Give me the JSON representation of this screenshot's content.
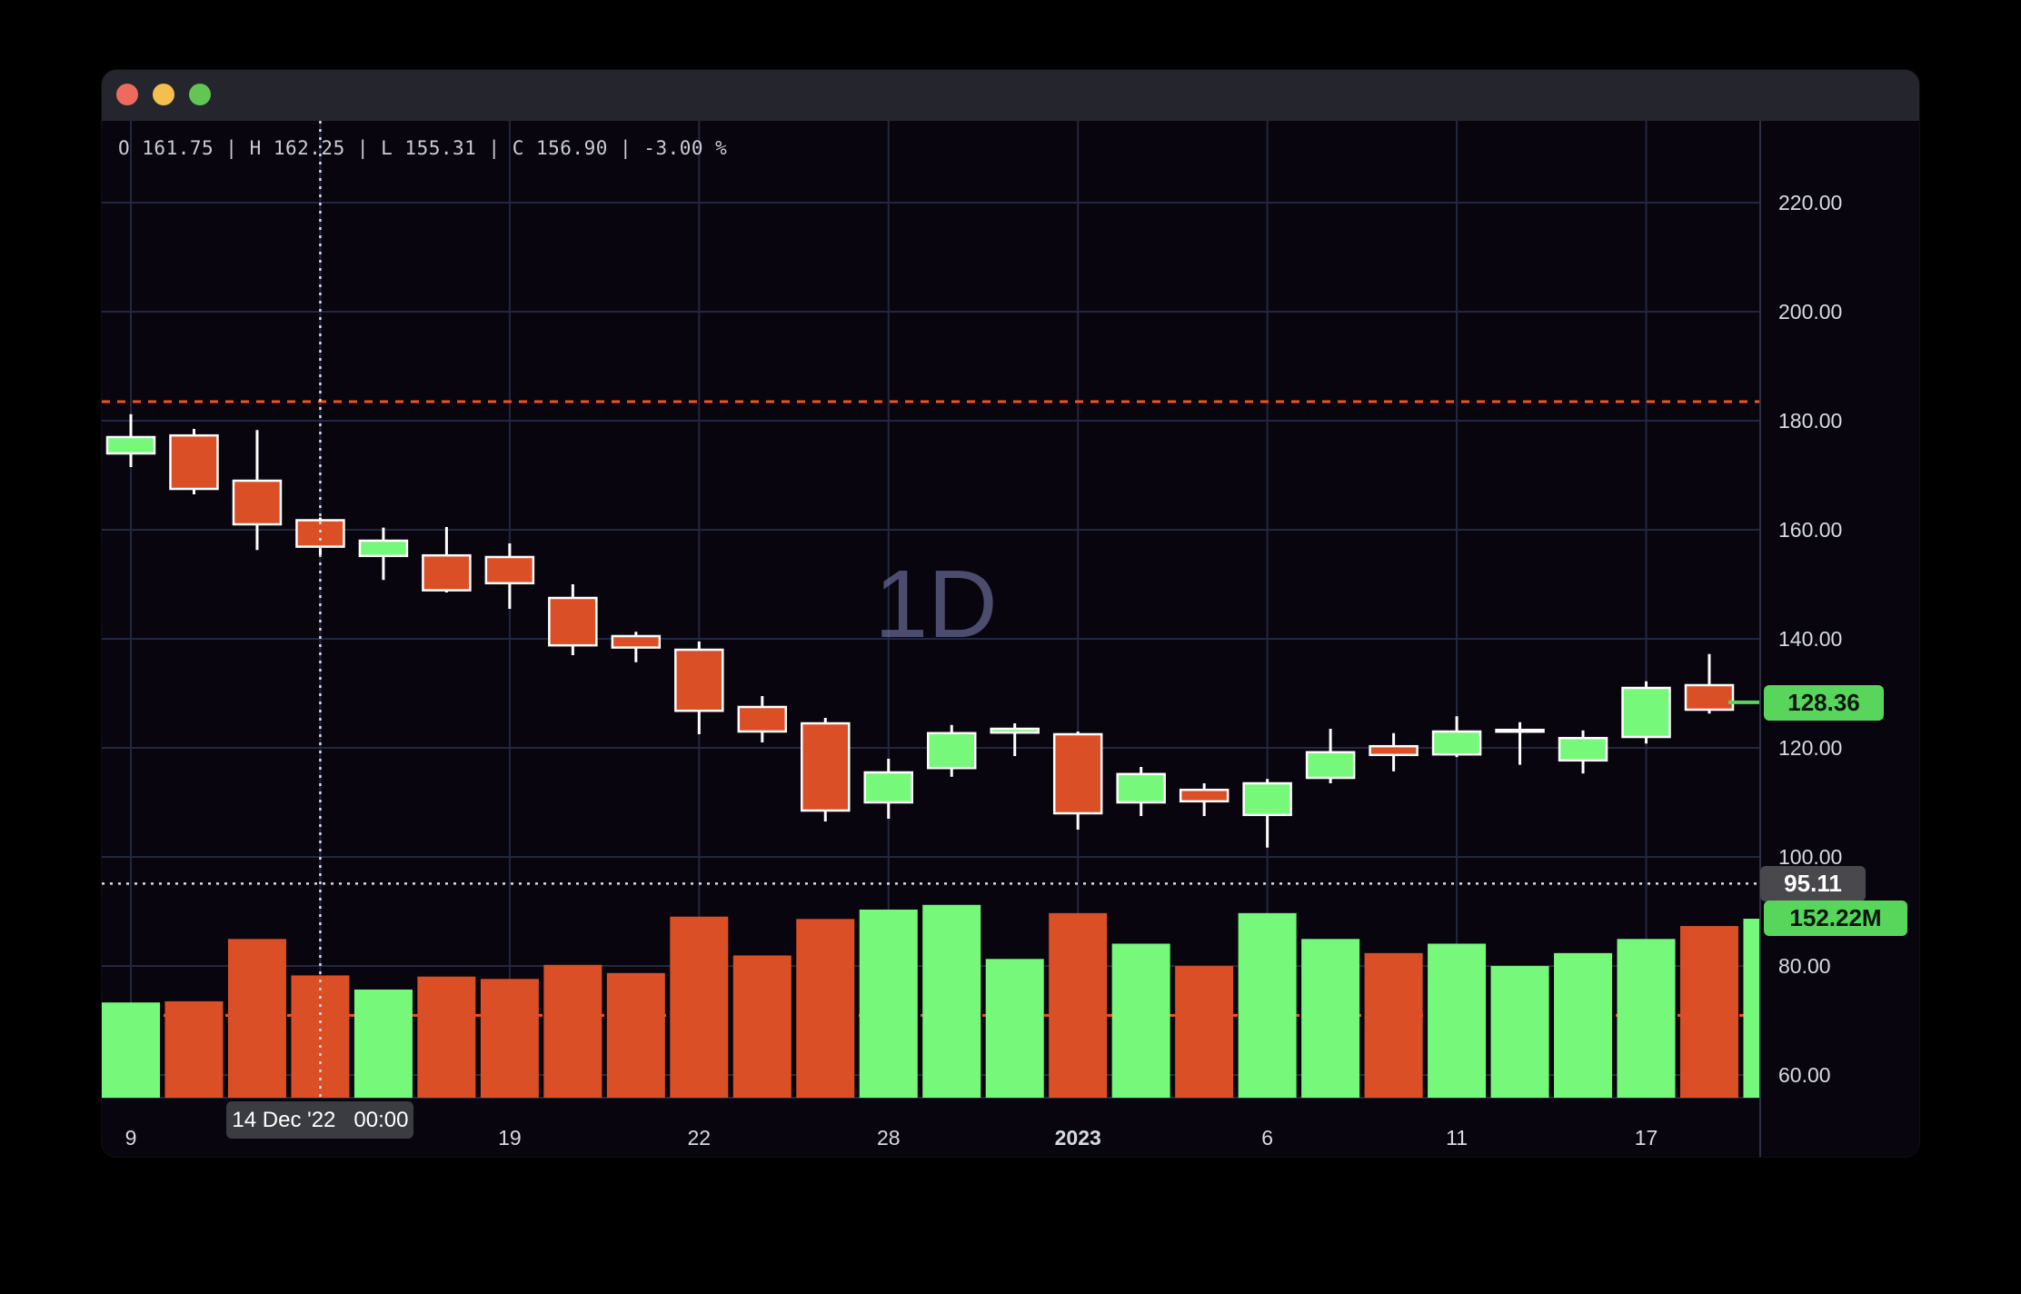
{
  "window": {
    "traffic_lights": [
      "close",
      "minimize",
      "zoom"
    ]
  },
  "legend": {
    "ohlc": "O 161.75 | H 162.25 | L 155.31 | C 156.90 | -3.00 %"
  },
  "watermark": "1D",
  "crosshair": {
    "candle_index": 3,
    "price": 95.11,
    "price_label": "95.11",
    "time_label": "14 Dec '22   00:00"
  },
  "price_axis": {
    "tick_labels": [
      "220.00",
      "200.00",
      "180.00",
      "160.00",
      "140.00",
      "120.00",
      "100.00",
      "80.00",
      "60.00"
    ],
    "tick_values": [
      220,
      200,
      180,
      160,
      140,
      120,
      100,
      80,
      60
    ],
    "last_price": 128.36,
    "last_price_label": "128.36",
    "last_volume_label": "152.22M"
  },
  "time_axis": {
    "ticks": [
      {
        "index": 0,
        "label": "9",
        "bold": false
      },
      {
        "index": 6,
        "label": "19",
        "bold": false
      },
      {
        "index": 9,
        "label": "22",
        "bold": false
      },
      {
        "index": 12,
        "label": "28",
        "bold": false
      },
      {
        "index": 15,
        "label": "2023",
        "bold": true
      },
      {
        "index": 18,
        "label": "6",
        "bold": false
      },
      {
        "index": 21,
        "label": "11",
        "bold": false
      },
      {
        "index": 24,
        "label": "17",
        "bold": false
      }
    ]
  },
  "colors": {
    "up": "#76f87b",
    "down": "#da4f26",
    "wick": "#ffffff",
    "grid": "#222741",
    "axis_text": "#d7dae3",
    "crosshair": "#dcdce4",
    "dashed_level": "#f6501e",
    "price_line": "#58d65c",
    "badge_up_bg": "#58d65c",
    "badge_neutral_bg": "#48484d",
    "titlebar": "#25252e",
    "chart_bg": "#09050e"
  },
  "chart_data": {
    "type": "candlestick",
    "timeframe": "1D",
    "grid": true,
    "ylim": [
      55.8,
      235
    ],
    "price_gridline_step": 20,
    "levels": {
      "price_dashed_line": 183.5,
      "volume_dashed_line_millions": 70
    },
    "candles": [
      {
        "date": "2022-12-09",
        "o": 174.0,
        "h": 181.2,
        "l": 171.5,
        "c": 177.0,
        "volume_m": 81
      },
      {
        "date": "2022-12-12",
        "o": 177.3,
        "h": 178.5,
        "l": 166.5,
        "c": 167.5,
        "volume_m": 82
      },
      {
        "date": "2022-12-13",
        "o": 169.0,
        "h": 178.3,
        "l": 156.3,
        "c": 161.0,
        "volume_m": 135
      },
      {
        "date": "2022-12-14",
        "o": 161.75,
        "h": 162.25,
        "l": 155.31,
        "c": 156.9,
        "volume_m": 104
      },
      {
        "date": "2022-12-15",
        "o": 155.2,
        "h": 160.4,
        "l": 150.8,
        "c": 158.0,
        "volume_m": 92
      },
      {
        "date": "2022-12-16",
        "o": 155.3,
        "h": 160.5,
        "l": 148.5,
        "c": 148.9,
        "volume_m": 103
      },
      {
        "date": "2022-12-19",
        "o": 155.0,
        "h": 157.5,
        "l": 145.5,
        "c": 150.2,
        "volume_m": 101
      },
      {
        "date": "2022-12-20",
        "o": 147.5,
        "h": 150.0,
        "l": 137.0,
        "c": 138.8,
        "volume_m": 113
      },
      {
        "date": "2022-12-21",
        "o": 140.5,
        "h": 141.3,
        "l": 135.7,
        "c": 138.4,
        "volume_m": 106
      },
      {
        "date": "2022-12-22",
        "o": 138.0,
        "h": 139.5,
        "l": 122.5,
        "c": 126.8,
        "volume_m": 154
      },
      {
        "date": "2022-12-23",
        "o": 127.5,
        "h": 129.5,
        "l": 121.0,
        "c": 123.0,
        "volume_m": 121
      },
      {
        "date": "2022-12-27",
        "o": 124.5,
        "h": 125.5,
        "l": 106.5,
        "c": 108.5,
        "volume_m": 152
      },
      {
        "date": "2022-12-28",
        "o": 110.0,
        "h": 118.0,
        "l": 107.0,
        "c": 115.5,
        "volume_m": 160
      },
      {
        "date": "2022-12-29",
        "o": 116.3,
        "h": 124.2,
        "l": 114.7,
        "c": 122.7,
        "volume_m": 164
      },
      {
        "date": "2022-12-30",
        "o": 122.8,
        "h": 124.5,
        "l": 118.5,
        "c": 123.5,
        "volume_m": 118
      },
      {
        "date": "2023-01-03",
        "o": 122.5,
        "h": 123.0,
        "l": 105.0,
        "c": 108.0,
        "volume_m": 157
      },
      {
        "date": "2023-01-04",
        "o": 110.0,
        "h": 116.5,
        "l": 107.5,
        "c": 115.2,
        "volume_m": 131
      },
      {
        "date": "2023-01-05",
        "o": 112.3,
        "h": 113.5,
        "l": 107.5,
        "c": 110.2,
        "volume_m": 112
      },
      {
        "date": "2023-01-06",
        "o": 107.7,
        "h": 114.3,
        "l": 101.7,
        "c": 113.5,
        "volume_m": 157
      },
      {
        "date": "2023-01-09",
        "o": 114.5,
        "h": 123.5,
        "l": 113.5,
        "c": 119.2,
        "volume_m": 135
      },
      {
        "date": "2023-01-10",
        "o": 120.3,
        "h": 122.7,
        "l": 115.7,
        "c": 118.7,
        "volume_m": 123
      },
      {
        "date": "2023-01-11",
        "o": 118.8,
        "h": 125.8,
        "l": 118.3,
        "c": 123.0,
        "volume_m": 131
      },
      {
        "date": "2023-01-12",
        "o": 123.2,
        "h": 124.7,
        "l": 116.9,
        "c": 123.3,
        "volume_m": 112
      },
      {
        "date": "2023-01-13",
        "o": 117.7,
        "h": 123.2,
        "l": 115.3,
        "c": 121.8,
        "volume_m": 123
      },
      {
        "date": "2023-01-17",
        "o": 122.0,
        "h": 132.2,
        "l": 120.8,
        "c": 131.0,
        "volume_m": 135
      },
      {
        "date": "2023-01-18",
        "o": 131.5,
        "h": 137.2,
        "l": 126.3,
        "c": 127.0,
        "volume_m": 146
      }
    ],
    "partial_last_bar": {
      "date": "2023-01-19",
      "close": 128.36,
      "volume_m": 152.22,
      "direction": "up"
    }
  }
}
